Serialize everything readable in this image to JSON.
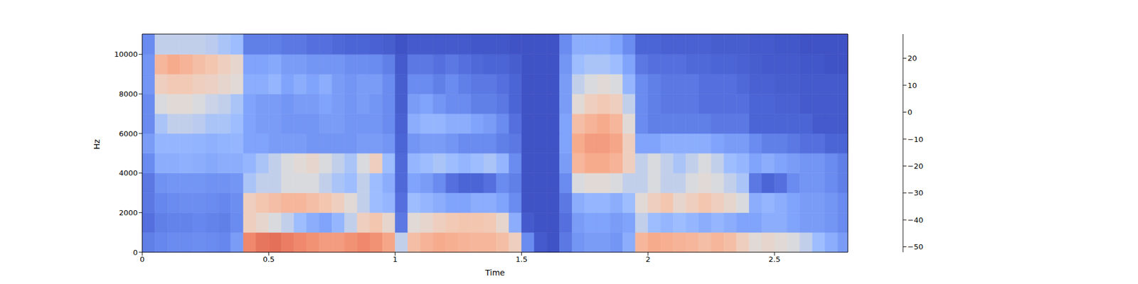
{
  "chart_data": {
    "type": "heatmap",
    "xlabel": "Time",
    "ylabel": "Hz",
    "xlim": [
      0,
      2.79
    ],
    "xticks": [
      0,
      0.5,
      1,
      1.5,
      2,
      2.5
    ],
    "ylim": [
      0,
      11025
    ],
    "yticks": [
      0,
      2000,
      4000,
      6000,
      8000,
      10000
    ],
    "x_edges": [
      0,
      0.05,
      0.1,
      0.15,
      0.2,
      0.25,
      0.3,
      0.35,
      0.4,
      0.45,
      0.5,
      0.55,
      0.6,
      0.65,
      0.7,
      0.75,
      0.8,
      0.85,
      0.9,
      0.95,
      1,
      1.05,
      1.1,
      1.15,
      1.2,
      1.25,
      1.3,
      1.35,
      1.4,
      1.45,
      1.5,
      1.55,
      1.6,
      1.65,
      1.7,
      1.75,
      1.8,
      1.85,
      1.9,
      1.95,
      2,
      2.05,
      2.1,
      2.15,
      2.2,
      2.25,
      2.3,
      2.35,
      2.4,
      2.45,
      2.5,
      2.55,
      2.6,
      2.65,
      2.7,
      2.75,
      2.79
    ],
    "y_edges": [
      0,
      1000,
      2000,
      3000,
      4000,
      5000,
      6000,
      7000,
      8000,
      9000,
      10000,
      11025
    ],
    "cells": [
      [
        -38,
        -36,
        -35,
        -35,
        -34,
        -35,
        -36,
        -30,
        12,
        15,
        16,
        14,
        12,
        10,
        8,
        8,
        10,
        12,
        10,
        6,
        -15,
        0,
        3,
        5,
        4,
        3,
        2,
        2,
        0,
        -5,
        -35,
        -48,
        -50,
        -40,
        -32,
        -30,
        -30,
        -32,
        -25,
        2,
        5,
        4,
        3,
        2,
        0,
        2,
        0,
        -5,
        -10,
        -8,
        -10,
        -12,
        -15,
        -20,
        -25,
        -30
      ],
      [
        -42,
        -38,
        -37,
        -37,
        -36,
        -37,
        -38,
        -35,
        -5,
        -8,
        -12,
        -15,
        -20,
        -25,
        -28,
        -22,
        -15,
        -5,
        -2,
        -8,
        -40,
        -10,
        -8,
        -5,
        -3,
        -2,
        -2,
        -3,
        -8,
        -25,
        -48,
        -50,
        -50,
        -42,
        -30,
        -28,
        -28,
        -30,
        -28,
        -15,
        -20,
        -22,
        -20,
        -22,
        -25,
        -22,
        -25,
        -28,
        -28,
        -25,
        -25,
        -28,
        -30,
        -30,
        -32,
        -35
      ],
      [
        -40,
        -36,
        -35,
        -34,
        -34,
        -35,
        -36,
        -34,
        -5,
        -2,
        0,
        2,
        2,
        0,
        -2,
        -5,
        -10,
        -15,
        -20,
        -22,
        -42,
        -20,
        -22,
        -25,
        -28,
        -28,
        -25,
        -25,
        -28,
        -35,
        -50,
        -50,
        -50,
        -40,
        -25,
        -22,
        -22,
        -25,
        -20,
        -10,
        -5,
        -2,
        -8,
        -5,
        -2,
        -5,
        -8,
        -12,
        -25,
        -22,
        -25,
        -28,
        -30,
        -30,
        -32,
        -35
      ],
      [
        -40,
        -33,
        -32,
        -32,
        -32,
        -33,
        -33,
        -32,
        -18,
        -15,
        -15,
        -12,
        -12,
        -12,
        -15,
        -18,
        -20,
        -15,
        -20,
        -25,
        -44,
        -28,
        -30,
        -35,
        -42,
        -45,
        -45,
        -42,
        -35,
        -38,
        -50,
        -50,
        -50,
        -35,
        -12,
        -10,
        -10,
        -12,
        -15,
        -15,
        -12,
        -15,
        -15,
        -12,
        -10,
        -12,
        -15,
        -18,
        -40,
        -45,
        -42,
        -35,
        -32,
        -32,
        -35,
        -38
      ],
      [
        -35,
        -25,
        -25,
        -24,
        -25,
        -26,
        -25,
        -25,
        -22,
        -18,
        -15,
        -12,
        -10,
        -8,
        -12,
        -15,
        -18,
        -12,
        -5,
        -20,
        -44,
        -22,
        -20,
        -18,
        -20,
        -22,
        -20,
        -18,
        -22,
        -35,
        -50,
        -50,
        -50,
        -30,
        2,
        5,
        5,
        3,
        -5,
        -15,
        -12,
        -15,
        -18,
        -15,
        -12,
        -15,
        -20,
        -22,
        -28,
        -25,
        -28,
        -30,
        -32,
        -32,
        -35,
        -38
      ],
      [
        -30,
        -22,
        -22,
        -22,
        -23,
        -24,
        -23,
        -22,
        -28,
        -28,
        -30,
        -30,
        -30,
        -32,
        -32,
        -32,
        -32,
        -30,
        -30,
        -32,
        -45,
        -32,
        -30,
        -30,
        -32,
        -35,
        -35,
        -35,
        -38,
        -40,
        -50,
        -50,
        -50,
        -28,
        5,
        8,
        8,
        6,
        -5,
        -28,
        -28,
        -25,
        -25,
        -25,
        -25,
        -28,
        -30,
        -30,
        -35,
        -38,
        -38,
        -40,
        -42,
        -42,
        -45,
        -45
      ],
      [
        -35,
        -18,
        -15,
        -15,
        -16,
        -18,
        -18,
        -20,
        -28,
        -30,
        -30,
        -32,
        -32,
        -32,
        -30,
        -30,
        -32,
        -32,
        -32,
        -35,
        -46,
        -25,
        -22,
        -22,
        -25,
        -25,
        -28,
        -30,
        -35,
        -42,
        -50,
        -50,
        -50,
        -28,
        0,
        3,
        5,
        2,
        -10,
        -35,
        -38,
        -38,
        -38,
        -38,
        -38,
        -40,
        -40,
        -40,
        -45,
        -45,
        -45,
        -45,
        -45,
        -48,
        -48,
        -48
      ],
      [
        -35,
        -12,
        -10,
        -10,
        -12,
        -14,
        -15,
        -18,
        -28,
        -30,
        -30,
        -32,
        -30,
        -30,
        -28,
        -30,
        -32,
        -30,
        -32,
        -35,
        -47,
        -30,
        -28,
        -32,
        -35,
        -35,
        -38,
        -38,
        -40,
        -45,
        -50,
        -50,
        -50,
        -30,
        -10,
        -5,
        -3,
        -5,
        -15,
        -35,
        -38,
        -40,
        -40,
        -40,
        -42,
        -42,
        -42,
        -42,
        -45,
        -45,
        -46,
        -46,
        -48,
        -48,
        -48,
        -48
      ],
      [
        -32,
        -5,
        -3,
        -3,
        -5,
        -6,
        -8,
        -10,
        -25,
        -25,
        -22,
        -28,
        -25,
        -28,
        -25,
        -30,
        -32,
        -30,
        -30,
        -35,
        -47,
        -35,
        -35,
        -38,
        -35,
        -38,
        -40,
        -40,
        -42,
        -45,
        -50,
        -50,
        -50,
        -30,
        -15,
        -12,
        -10,
        -12,
        -22,
        -35,
        -38,
        -40,
        -40,
        -40,
        -42,
        -42,
        -42,
        -44,
        -46,
        -46,
        -47,
        -47,
        -48,
        -48,
        -48,
        -48
      ],
      [
        -32,
        2,
        5,
        3,
        0,
        -2,
        -5,
        -8,
        -28,
        -28,
        -26,
        -30,
        -30,
        -32,
        -32,
        -32,
        -34,
        -34,
        -35,
        -38,
        -48,
        -40,
        -40,
        -42,
        -40,
        -42,
        -44,
        -45,
        -45,
        -47,
        -50,
        -50,
        -50,
        -32,
        -20,
        -18,
        -18,
        -20,
        -28,
        -40,
        -42,
        -42,
        -42,
        -44,
        -44,
        -45,
        -45,
        -46,
        -47,
        -48,
        -48,
        -48,
        -49,
        -49,
        -50,
        -50
      ],
      [
        -35,
        -15,
        -15,
        -15,
        -15,
        -16,
        -18,
        -20,
        -38,
        -38,
        -38,
        -40,
        -40,
        -42,
        -42,
        -44,
        -45,
        -45,
        -46,
        -47,
        -50,
        -48,
        -48,
        -48,
        -48,
        -48,
        -49,
        -49,
        -49,
        -50,
        -50,
        -50,
        -50,
        -35,
        -25,
        -25,
        -25,
        -28,
        -35,
        -45,
        -45,
        -46,
        -46,
        -46,
        -46,
        -47,
        -47,
        -47,
        -48,
        -48,
        -49,
        -49,
        -50,
        -50,
        -50,
        -50
      ]
    ],
    "colorbar": {
      "range": [
        -52,
        29
      ],
      "ticks": [
        {
          "value": -50,
          "label": "−50"
        },
        {
          "value": -40,
          "label": "−40"
        },
        {
          "value": -30,
          "label": "−30"
        },
        {
          "value": -20,
          "label": "−20"
        },
        {
          "value": -10,
          "label": "−10"
        },
        0,
        10,
        20
      ]
    }
  }
}
